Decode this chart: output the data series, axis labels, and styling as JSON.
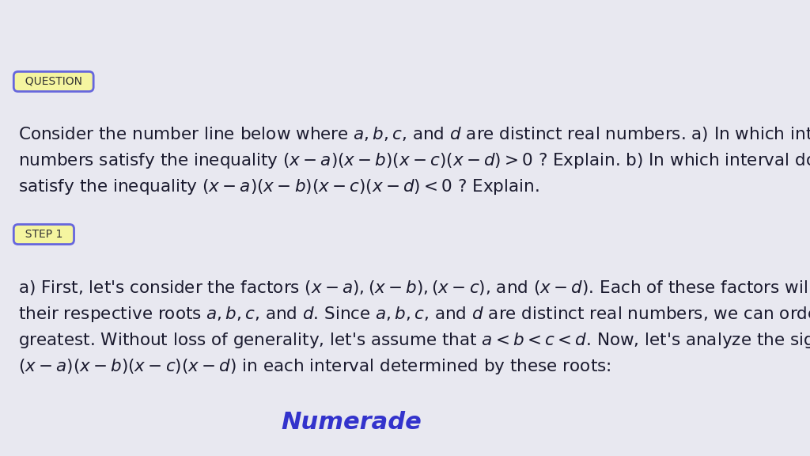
{
  "background_color": "#e8e8f0",
  "title": "",
  "question_badge_text": "QUESTION",
  "question_badge_bg": "#f5f5a0",
  "question_badge_border": "#6666dd",
  "step_badge_text": "STEP 1",
  "step_badge_bg": "#f5f5a0",
  "step_badge_border": "#6666dd",
  "question_line1": "Consider the number line below where $\\boldsymbol{a, b, c}$, and $\\boldsymbol{d}$ are distinct real numbers. a) In which intervals do the real",
  "question_line2": "numbers satisfy the inequality $(\\boldsymbol{x}-\\boldsymbol{a})(\\boldsymbol{x}-\\boldsymbol{b})(\\boldsymbol{x}-\\boldsymbol{c})(\\boldsymbol{x}-\\boldsymbol{d})>0$ ? Explain. b) In which interval do the real numbers",
  "question_line3": "satisfy the inequality $(\\boldsymbol{x}-\\boldsymbol{a})(\\boldsymbol{x}-\\boldsymbol{b})(\\boldsymbol{x}-\\boldsymbol{c})(\\boldsymbol{x}-\\boldsymbol{d})<0$ ? Explain.",
  "step1_line1": "a) First, let’s consider the factors $(\\boldsymbol{x}-\\boldsymbol{a}),(\\boldsymbol{x}-\\boldsymbol{b}),(\\boldsymbol{x}-\\boldsymbol{c})$, and $(\\boldsymbol{x}-\\boldsymbol{d})$. Each of these factors will change sign at",
  "step1_line2": "their respective roots $\\boldsymbol{a, b, c}$, and $\\boldsymbol{d}$. Since $a, b, c$, and $\\boldsymbol{d}$ are distinct real numbers, we can order them from least to",
  "step1_line3": "greatest. Without loss of generality, let’s assume that $\\boldsymbol{a}<\\boldsymbol{b}<\\boldsymbol{c}<\\boldsymbol{d}$. Now, let’s analyze the sign of the product",
  "step1_line4": "$(\\boldsymbol{x}-\\boldsymbol{a})(\\boldsymbol{x}-\\boldsymbol{b})(\\boldsymbol{x}-\\boldsymbol{c})(\\boldsymbol{x}-\\boldsymbol{d})$ in each interval determined by these roots:",
  "numerade_text": "Numerade",
  "numerade_color": "#3333cc",
  "text_color": "#1a1a2e",
  "font_size": 15.5,
  "badge_font_size": 10
}
